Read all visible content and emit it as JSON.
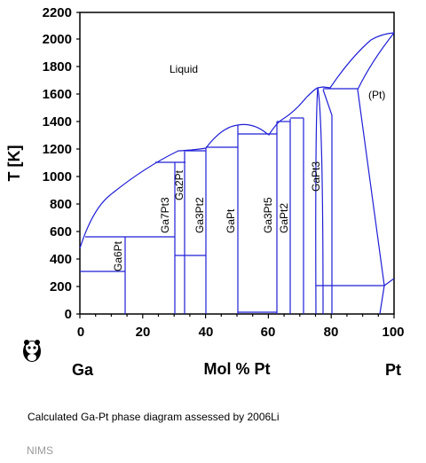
{
  "diagram": {
    "y_axis_label": "T [K]",
    "x_axis_label": "Mol % Pt",
    "element_left": "Ga",
    "element_right": "Pt",
    "y_ticks": [
      "0",
      "200",
      "400",
      "600",
      "800",
      "1000",
      "1200",
      "1400",
      "1600",
      "1800",
      "2000",
      "2200"
    ],
    "x_ticks": [
      "0",
      "20",
      "40",
      "60",
      "80",
      "100"
    ],
    "regions": {
      "liquid": "Liquid",
      "pt": "(Pt)",
      "ga6pt": "Ga6Pt",
      "ga7pt3": "Ga7Pt3",
      "ga2pt": "Ga2Pt",
      "ga3pt2": "Ga3Pt2",
      "gapt": "GaPt",
      "ga3pt5": "Ga3Pt5",
      "gapt2": "GaPt2",
      "gapt3": "GaPt3"
    },
    "line_color": "#1f1fd6",
    "axis_color": "#000000"
  },
  "chart_data": {
    "type": "phase-diagram",
    "xlabel": "Mol % Pt",
    "ylabel": "T [K]",
    "xlim": [
      0,
      100
    ],
    "ylim": [
      0,
      2200
    ],
    "phases": [
      {
        "name": "Ga6Pt",
        "x": 14.3,
        "T_max": 560
      },
      {
        "name": "Ga7Pt3",
        "x": 30,
        "T_max": 1100
      },
      {
        "name": "Ga2Pt",
        "x": 33.3,
        "T_max": 1195
      },
      {
        "name": "Ga3Pt2",
        "x": 40,
        "T_max": 1210
      },
      {
        "name": "GaPt",
        "x": 50,
        "T_max": 1380
      },
      {
        "name": "Ga3Pt5",
        "x": 62.5,
        "T_max": 1410
      },
      {
        "name": "GaPt2",
        "x": 66.7,
        "T_max": 1420
      },
      {
        "name": "GaPt3",
        "x": 75,
        "T_max": 1650
      }
    ],
    "liquidus": [
      [
        0,
        480
      ],
      [
        2,
        560
      ],
      [
        10,
        800
      ],
      [
        20,
        1000
      ],
      [
        30,
        1120
      ],
      [
        33.3,
        1195
      ],
      [
        38,
        1200
      ],
      [
        42,
        1250
      ],
      [
        46,
        1330
      ],
      [
        50,
        1380
      ],
      [
        54,
        1370
      ],
      [
        58,
        1310
      ],
      [
        62,
        1390
      ],
      [
        66,
        1420
      ],
      [
        70,
        1500
      ],
      [
        74,
        1620
      ],
      [
        76,
        1650
      ],
      [
        79,
        1640
      ],
      [
        85,
        1820
      ],
      [
        92,
        1990
      ],
      [
        100,
        2040
      ]
    ],
    "solidus_pt": [
      [
        76,
        1640
      ],
      [
        88,
        1640
      ],
      [
        95,
        210
      ],
      [
        100,
        260
      ]
    ],
    "invariant_T": [
      305,
      560,
      1100,
      1195,
      1210,
      1310,
      1410,
      1420,
      1640,
      210
    ]
  },
  "caption": "Calculated Ga-Pt phase diagram assessed by 2006Li",
  "source": "NIMS"
}
